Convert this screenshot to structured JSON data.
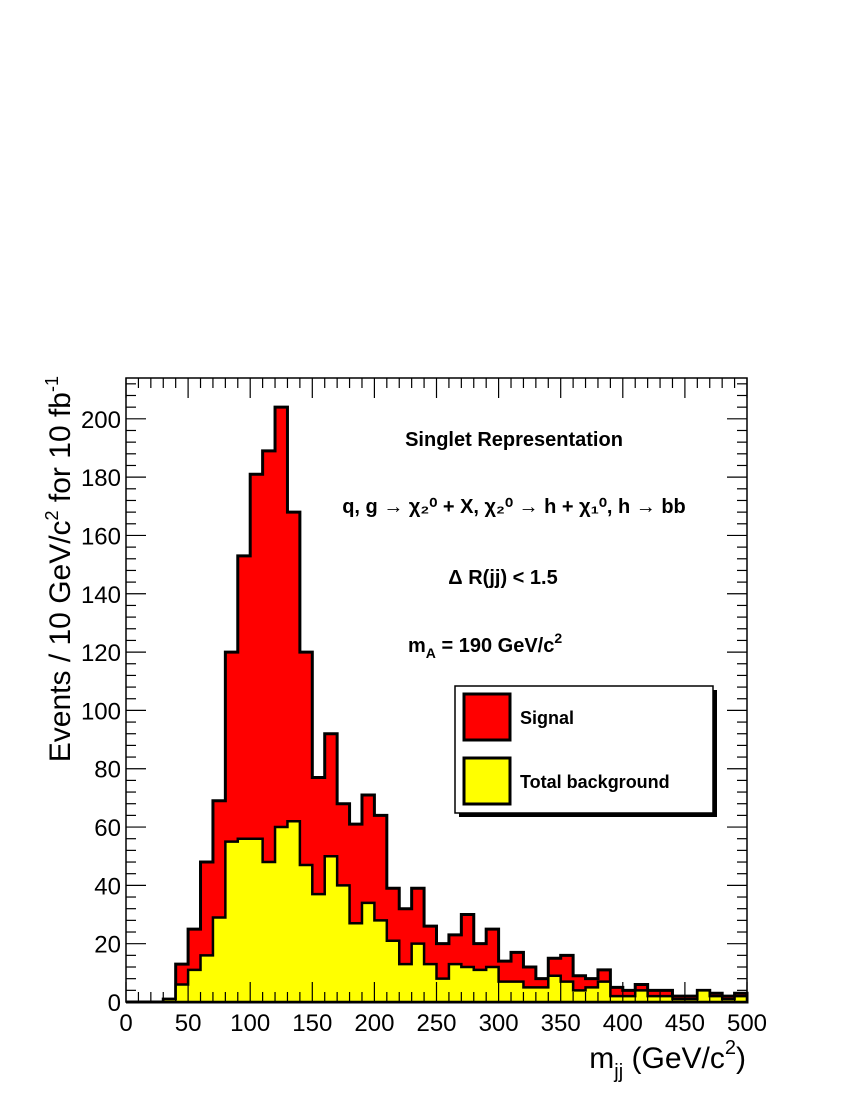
{
  "chart_data": {
    "type": "bar",
    "style": "stacked-histogram",
    "x_bin_width": 10,
    "x_bin_edges_start": 0,
    "xlim": [
      0,
      500
    ],
    "ylim": [
      0,
      214
    ],
    "x_ticks": [
      0,
      50,
      100,
      150,
      200,
      250,
      300,
      350,
      400,
      450,
      500
    ],
    "y_ticks": [
      0,
      20,
      40,
      60,
      80,
      100,
      120,
      140,
      160,
      180,
      200
    ],
    "xlabel_main": "m",
    "xlabel_sub": "jj",
    "xlabel_unit": " (GeV/c",
    "xlabel_sup": "2",
    "xlabel_close": ")",
    "ylabel_main": "Events / 10 GeV/c",
    "ylabel_sup1": "2",
    "ylabel_mid": " for 10 fb",
    "ylabel_sup2": "-1",
    "annotations": {
      "title": "Singlet Representation",
      "process": "q, g → χ₂⁰ + X,  χ₂⁰ → h + χ₁⁰, h → bb",
      "cut": "Δ R(jj) <  1.5",
      "mass_main": "m",
      "mass_sub": "A",
      "mass_value": " = 190 GeV/c",
      "mass_sup": "2"
    },
    "legend_position": "center-right",
    "series": [
      {
        "name": "Signal",
        "color": "#ff0000",
        "stack_total": [
          0,
          0,
          0,
          1,
          13,
          25,
          48,
          69,
          120,
          153,
          181,
          189,
          204,
          168,
          120,
          77,
          92,
          68,
          61,
          71,
          64,
          39,
          32,
          39,
          26,
          20,
          23,
          30,
          20,
          25,
          14,
          17,
          12,
          8,
          15,
          16,
          9,
          8,
          11,
          5,
          4,
          6,
          4,
          4,
          2,
          2,
          4,
          3,
          2,
          3
        ]
      },
      {
        "name": "Total background",
        "color": "#ffff00",
        "values": [
          0,
          0,
          0,
          1,
          6,
          11,
          16,
          29,
          55,
          56,
          56,
          48,
          60,
          62,
          47,
          37,
          50,
          40,
          27,
          34,
          28,
          21,
          13,
          20,
          13,
          8,
          13,
          12,
          11,
          12,
          7,
          7,
          5,
          5,
          9,
          7,
          4,
          5,
          7,
          2,
          2,
          4,
          2,
          2,
          1,
          1,
          4,
          2,
          1,
          2
        ]
      }
    ]
  }
}
